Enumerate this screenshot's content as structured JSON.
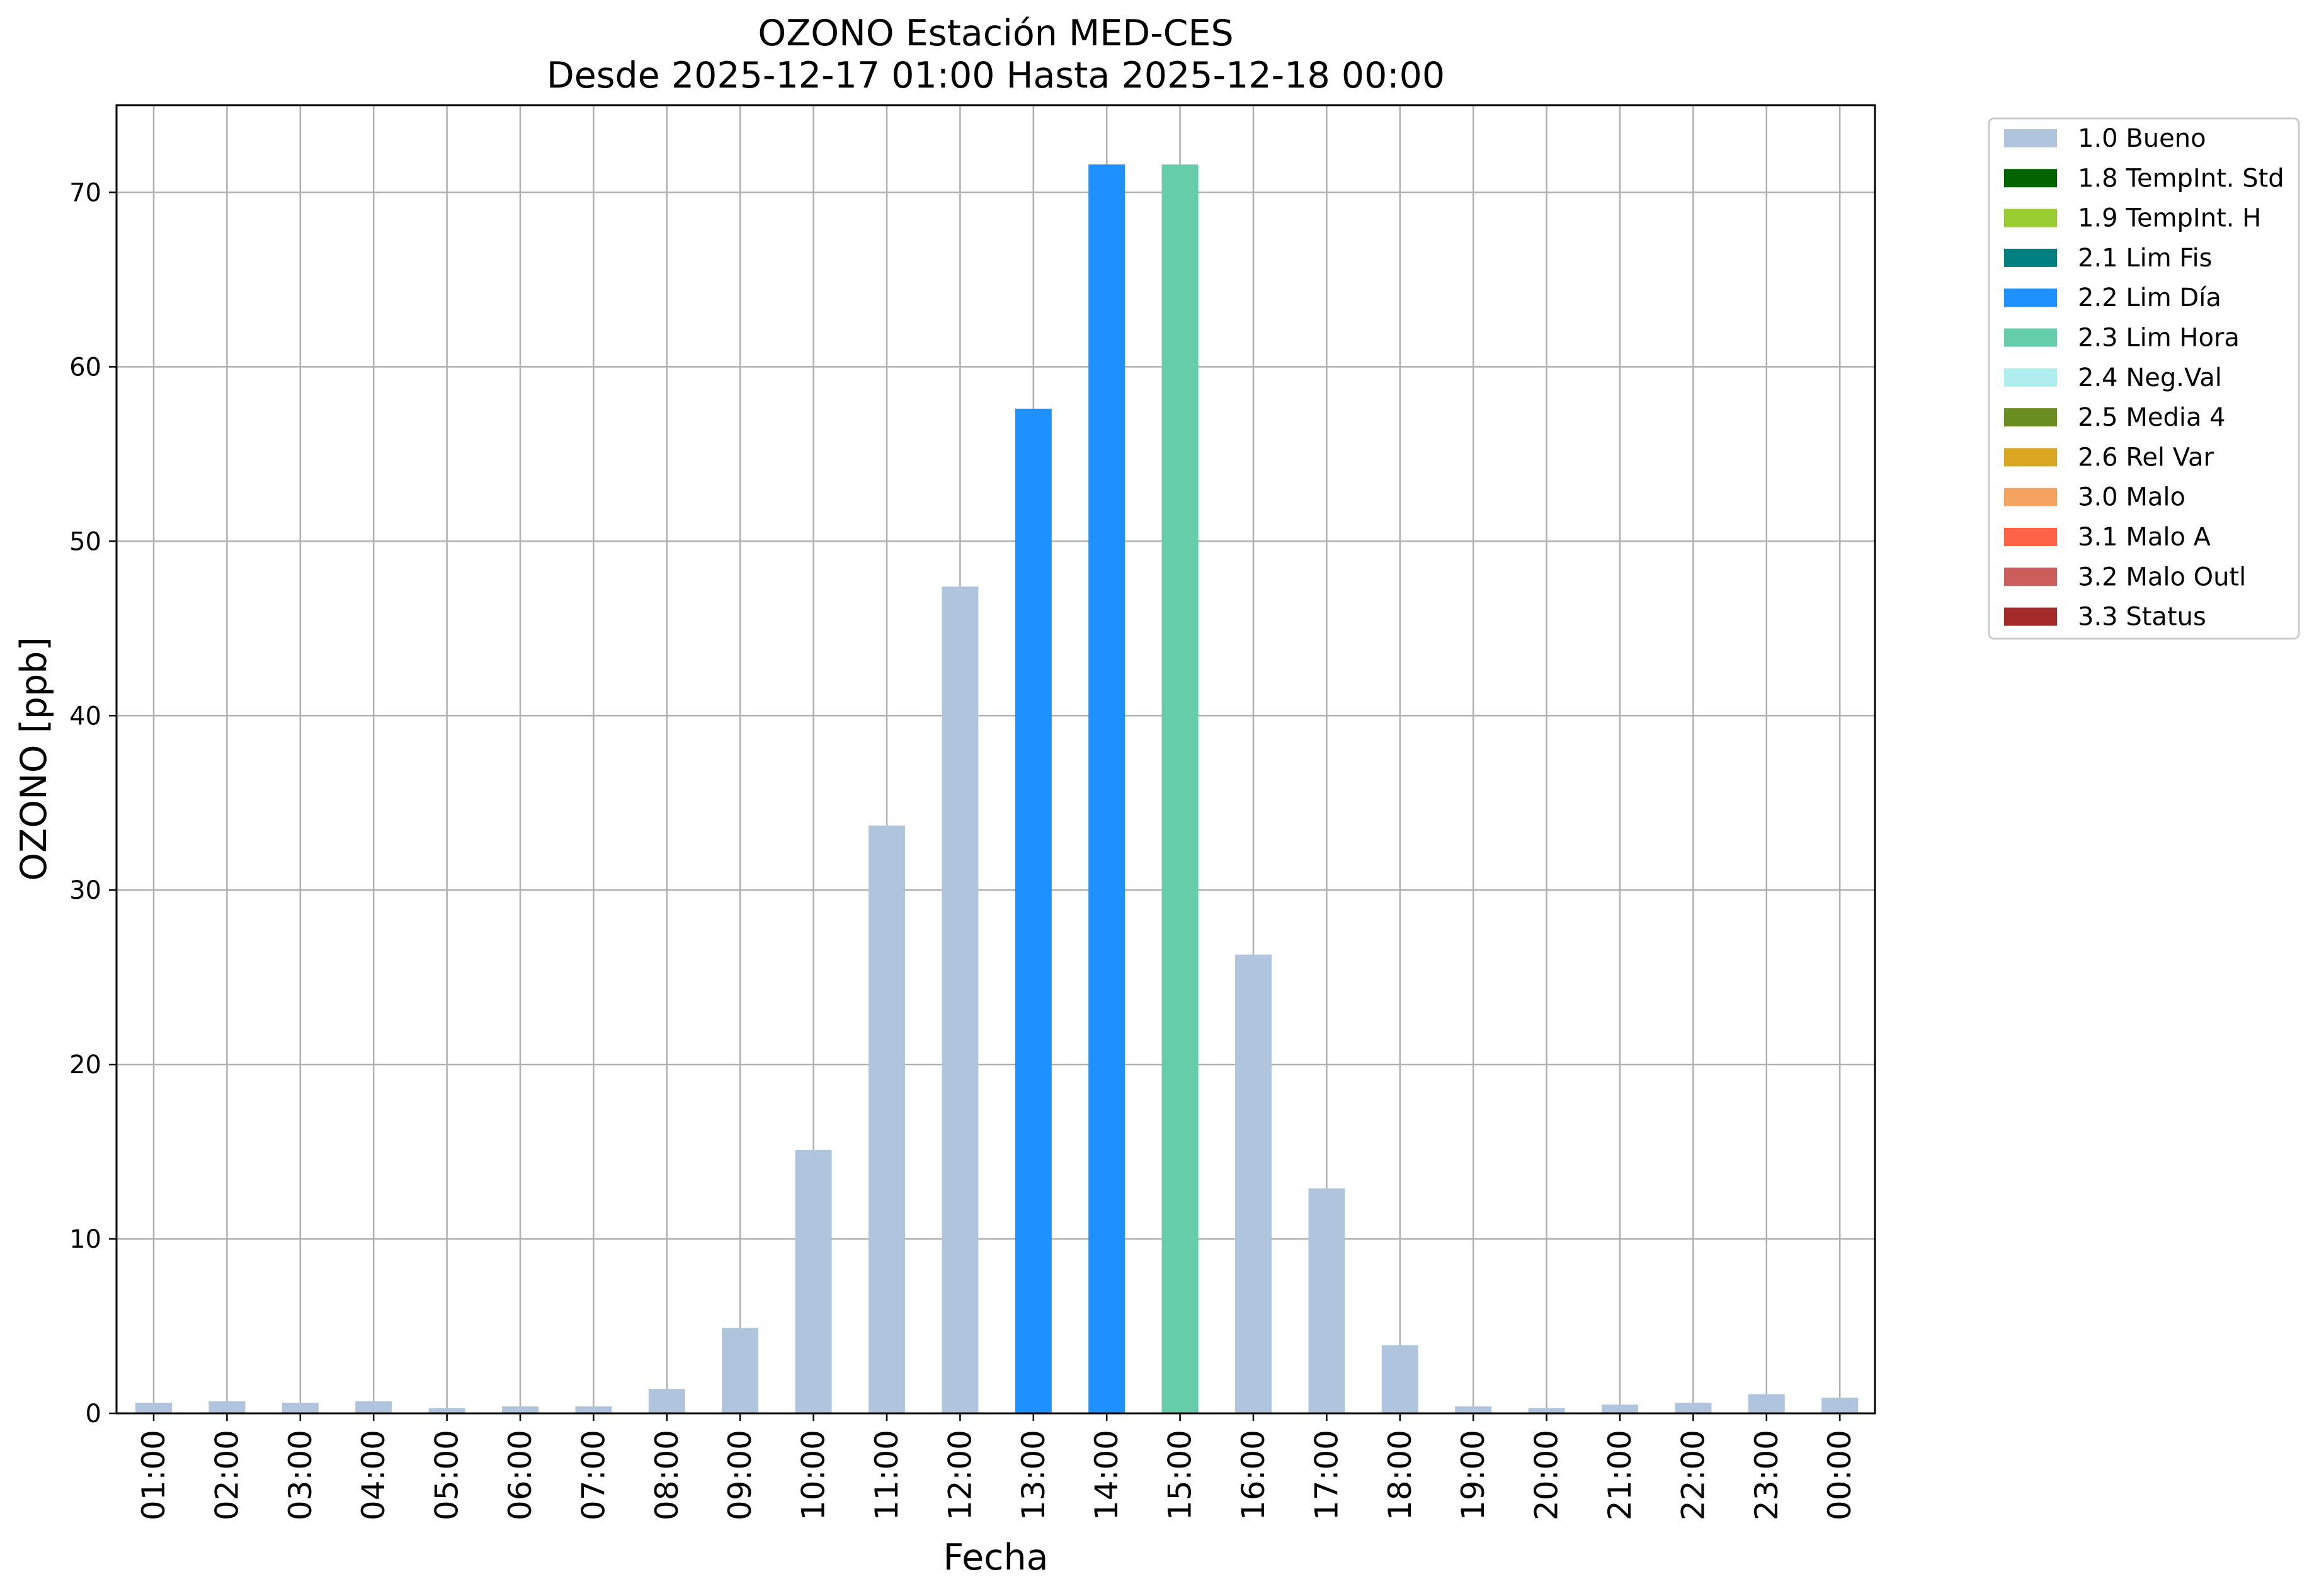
{
  "chart_data": {
    "type": "bar",
    "title": "OZONO Estación MED-CES",
    "subtitle": "Desde 2025-12-17 01:00 Hasta 2025-12-18 00:00",
    "xlabel": "Fecha",
    "ylabel": "OZONO [ppb]",
    "ylim": [
      0,
      75
    ],
    "yticks": [
      0,
      10,
      20,
      30,
      40,
      50,
      60,
      70
    ],
    "grid": true,
    "legend_position": "outside-top-right",
    "categories": [
      "01:00",
      "02:00",
      "03:00",
      "04:00",
      "05:00",
      "06:00",
      "07:00",
      "08:00",
      "09:00",
      "10:00",
      "11:00",
      "12:00",
      "13:00",
      "14:00",
      "15:00",
      "16:00",
      "17:00",
      "18:00",
      "19:00",
      "20:00",
      "21:00",
      "22:00",
      "23:00",
      "00:00"
    ],
    "values": [
      0.6,
      0.7,
      0.6,
      0.7,
      0.3,
      0.4,
      0.4,
      1.4,
      4.9,
      15.1,
      33.7,
      47.4,
      57.6,
      71.6,
      71.6,
      26.3,
      12.9,
      3.9,
      0.4,
      0.3,
      0.5,
      0.6,
      1.1,
      0.9
    ],
    "bar_flags": [
      "1.0 Bueno",
      "1.0 Bueno",
      "1.0 Bueno",
      "1.0 Bueno",
      "1.0 Bueno",
      "1.0 Bueno",
      "1.0 Bueno",
      "1.0 Bueno",
      "1.0 Bueno",
      "1.0 Bueno",
      "1.0 Bueno",
      "1.0 Bueno",
      "2.2 Lim Día",
      "2.2 Lim Día",
      "2.3 Lim Hora",
      "1.0 Bueno",
      "1.0 Bueno",
      "1.0 Bueno",
      "1.0 Bueno",
      "1.0 Bueno",
      "1.0 Bueno",
      "1.0 Bueno",
      "1.0 Bueno",
      "1.0 Bueno"
    ],
    "legend": [
      {
        "label": "1.0 Bueno",
        "color": "#b0c4de"
      },
      {
        "label": "1.8 TempInt. Std",
        "color": "#006400"
      },
      {
        "label": "1.9 TempInt. H",
        "color": "#9acd32"
      },
      {
        "label": "2.1 Lim Fis",
        "color": "#008080"
      },
      {
        "label": "2.2 Lim Día",
        "color": "#1e90ff"
      },
      {
        "label": "2.3 Lim Hora",
        "color": "#66cdaa"
      },
      {
        "label": "2.4 Neg.Val",
        "color": "#afeeee"
      },
      {
        "label": "2.5 Media 4",
        "color": "#6b8e23"
      },
      {
        "label": "2.6 Rel Var",
        "color": "#daa520"
      },
      {
        "label": "3.0 Malo",
        "color": "#f4a460"
      },
      {
        "label": "3.1 Malo A",
        "color": "#ff6347"
      },
      {
        "label": "3.2 Malo Outl",
        "color": "#cd5c5c"
      },
      {
        "label": "3.3 Status",
        "color": "#a52a2a"
      }
    ],
    "grid_color": "#b0b0b0"
  }
}
